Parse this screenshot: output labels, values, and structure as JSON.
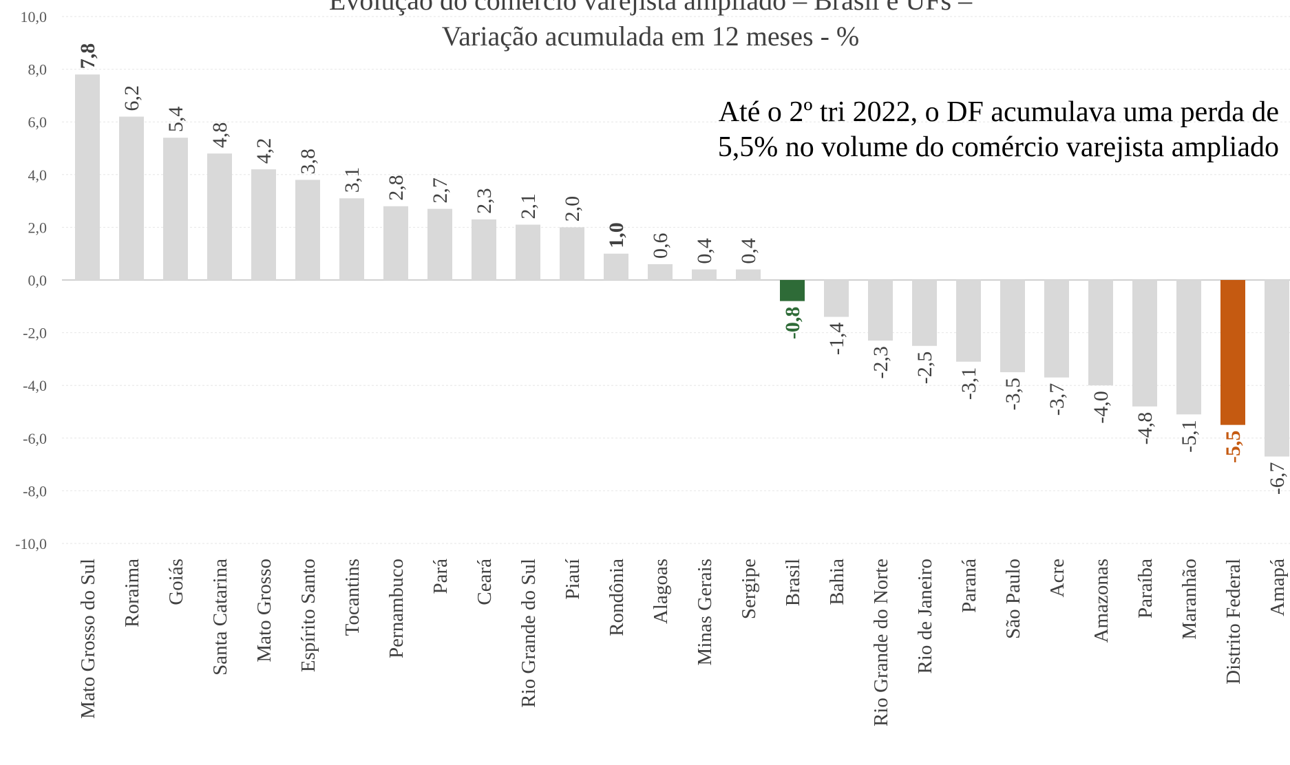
{
  "chart_data": {
    "type": "bar",
    "title_lines": [
      "Evolução do comércio varejista ampliado – Brasil e UFs –",
      "Variação acumulada em 12 meses - %"
    ],
    "annotation_lines": [
      "Até o 2º tri 2022, o DF acumulava uma perda de",
      "5,5% no volume do comércio varejista ampliado"
    ],
    "categories": [
      "Mato Grosso do Sul",
      "Roraima",
      "Goiás",
      "Santa Catarina",
      "Mato Grosso",
      "Espírito Santo",
      "Tocantins",
      "Pernambuco",
      "Pará",
      "Ceará",
      "Rio Grande do Sul",
      "Piauí",
      "Rondônia",
      "Alagoas",
      "Minas Gerais",
      "Sergipe",
      "Brasil",
      "Bahia",
      "Rio Grande do Norte",
      "Rio de Janeiro",
      "Paraná",
      "São Paulo",
      "Acre",
      "Amazonas",
      "Paraíba",
      "Maranhão",
      "Distrito Federal",
      "Amapá"
    ],
    "values": [
      7.8,
      6.2,
      5.4,
      4.8,
      4.2,
      3.8,
      3.1,
      2.8,
      2.7,
      2.3,
      2.1,
      2.0,
      1.0,
      0.6,
      0.4,
      0.4,
      -0.8,
      -1.4,
      -2.3,
      -2.5,
      -3.1,
      -3.5,
      -3.7,
      -4.0,
      -4.8,
      -5.1,
      -5.5,
      -6.7
    ],
    "data_labels": [
      "7,8",
      "6,2",
      "5,4",
      "4,8",
      "4,2",
      "3,8",
      "3,1",
      "2,8",
      "2,7",
      "2,3",
      "2,1",
      "2,0",
      "1,0",
      "0,6",
      "0,4",
      "0,4",
      "-0,8",
      "-1,4",
      "-2,3",
      "-2,5",
      "-3,1",
      "-3,5",
      "-3,7",
      "-4,0",
      "-4,8",
      "-5,1",
      "-5,5",
      "-6,7"
    ],
    "bold_labels": [
      "Mato Grosso do Sul",
      "Rondônia",
      "Brasil",
      "Distrito Federal"
    ],
    "ylim": [
      -10,
      10
    ],
    "yticks": [
      "-10,0",
      "-8,0",
      "-6,0",
      "-4,0",
      "-2,0",
      "0,0",
      "2,0",
      "4,0",
      "6,0",
      "8,0",
      "10,0"
    ],
    "ytick_values": [
      -10,
      -8,
      -6,
      -4,
      -2,
      0,
      2,
      4,
      6,
      8,
      10
    ],
    "grid": true,
    "colors": {
      "default_bar": "#d9d9d9",
      "Brasil": "#2e6b37",
      "Distrito Federal": "#c55a11",
      "default_label": "#404040"
    }
  }
}
